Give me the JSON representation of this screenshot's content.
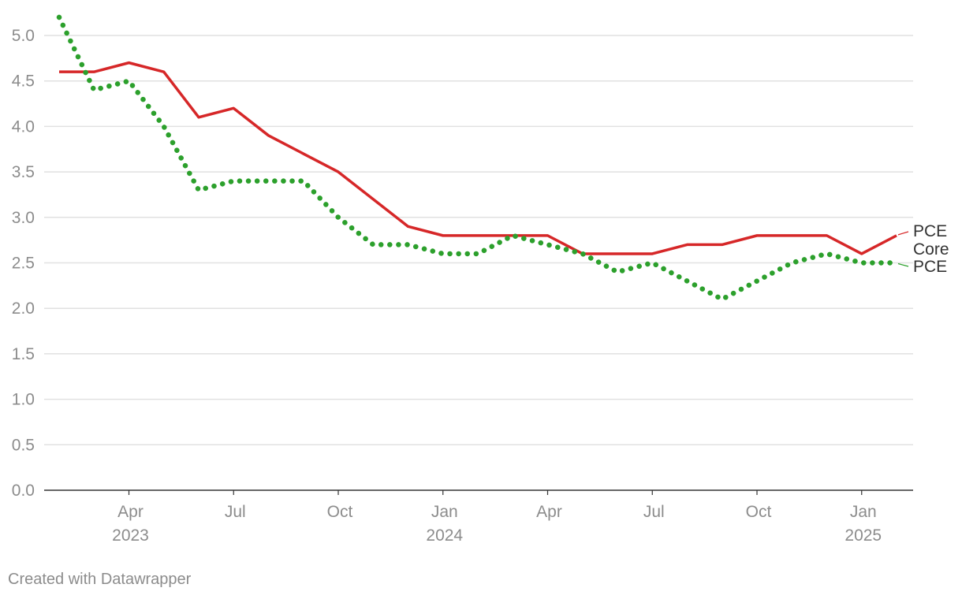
{
  "chart_data": {
    "type": "line",
    "x": [
      "2023-02",
      "2023-03",
      "2023-04",
      "2023-05",
      "2023-06",
      "2023-07",
      "2023-08",
      "2023-09",
      "2023-10",
      "2023-11",
      "2023-12",
      "2024-01",
      "2024-02",
      "2024-03",
      "2024-04",
      "2024-05",
      "2024-06",
      "2024-07",
      "2024-08",
      "2024-09",
      "2024-10",
      "2024-11",
      "2024-12",
      "2025-01",
      "2025-02"
    ],
    "series": [
      {
        "name": "PCE",
        "color": "#d62728",
        "style": "solid",
        "values": [
          4.6,
          4.6,
          4.7,
          4.6,
          4.1,
          4.2,
          3.9,
          3.7,
          3.5,
          3.2,
          2.9,
          2.8,
          2.8,
          2.8,
          2.8,
          2.6,
          2.6,
          2.6,
          2.7,
          2.7,
          2.8,
          2.8,
          2.8,
          2.6,
          2.8
        ]
      },
      {
        "name": "PCE",
        "color": "#2ca02c",
        "style": "dotted",
        "values": [
          5.2,
          4.4,
          4.5,
          4.0,
          3.3,
          3.4,
          3.4,
          3.4,
          3.0,
          2.7,
          2.7,
          2.6,
          2.6,
          2.8,
          2.7,
          2.6,
          2.4,
          2.5,
          2.3,
          2.1,
          2.3,
          2.5,
          2.6,
          2.5,
          2.5
        ]
      }
    ],
    "series_labels_text": {
      "top": "PCE",
      "middle": "Core",
      "bottom": "PCE"
    },
    "ylim": [
      0,
      5.2
    ],
    "yticks": [
      "0.0",
      "0.5",
      "1.0",
      "1.5",
      "2.0",
      "2.5",
      "3.0",
      "3.5",
      "4.0",
      "4.5",
      "5.0"
    ],
    "xticks": [
      {
        "date": "2023-04",
        "label": "Apr",
        "year": "2023"
      },
      {
        "date": "2023-07",
        "label": "Jul",
        "year": ""
      },
      {
        "date": "2023-10",
        "label": "Oct",
        "year": ""
      },
      {
        "date": "2024-01",
        "label": "Jan",
        "year": "2024"
      },
      {
        "date": "2024-04",
        "label": "Apr",
        "year": ""
      },
      {
        "date": "2024-07",
        "label": "Jul",
        "year": ""
      },
      {
        "date": "2024-10",
        "label": "Oct",
        "year": ""
      },
      {
        "date": "2025-01",
        "label": "Jan",
        "year": "2025"
      }
    ],
    "grid": true,
    "title": "",
    "xlabel": "",
    "ylabel": ""
  },
  "footer": {
    "credit": "Created with Datawrapper"
  }
}
